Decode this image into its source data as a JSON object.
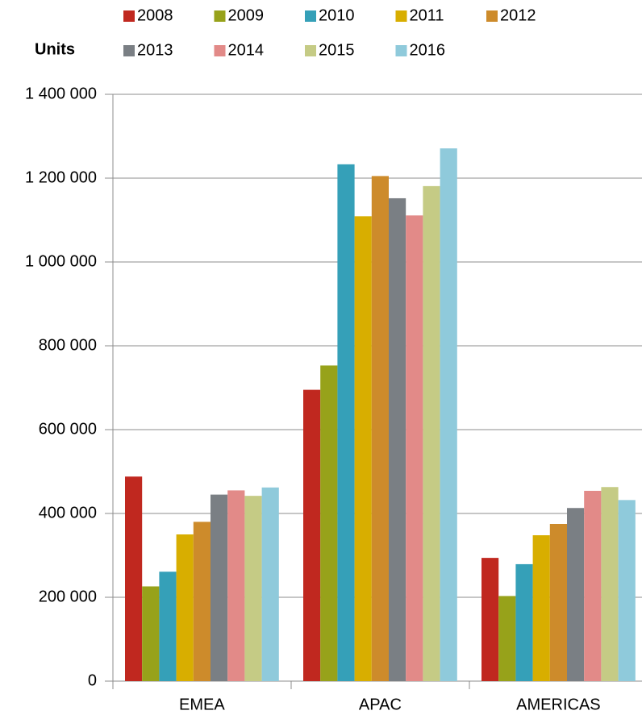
{
  "chart_data": {
    "type": "bar",
    "y_label": "Units",
    "categories": [
      "EMEA",
      "APAC",
      "AMERICAS"
    ],
    "series": [
      {
        "name": "2008",
        "color": "#c0281f",
        "values": [
          488000,
          695000,
          294000
        ]
      },
      {
        "name": "2009",
        "color": "#97a21a",
        "values": [
          226000,
          753000,
          203000
        ]
      },
      {
        "name": "2010",
        "color": "#35a0b8",
        "values": [
          261000,
          1233000,
          279000
        ]
      },
      {
        "name": "2011",
        "color": "#d8ae00",
        "values": [
          350000,
          1109000,
          348000
        ]
      },
      {
        "name": "2012",
        "color": "#cd8b2b",
        "values": [
          380000,
          1205000,
          375000
        ]
      },
      {
        "name": "2013",
        "color": "#7a7f84",
        "values": [
          445000,
          1152000,
          413000
        ]
      },
      {
        "name": "2014",
        "color": "#e28a88",
        "values": [
          455000,
          1111000,
          454000
        ]
      },
      {
        "name": "2015",
        "color": "#c5cb85",
        "values": [
          442000,
          1181000,
          463000
        ]
      },
      {
        "name": "2016",
        "color": "#8fcadb",
        "values": [
          462000,
          1271000,
          432000
        ]
      }
    ],
    "ylim": [
      0,
      1400000
    ],
    "yticks": [
      0,
      {
        "value": 200000,
        "label": "200 000"
      },
      {
        "value": 400000,
        "label": "400 000"
      },
      {
        "value": 600000,
        "label": "600 000"
      },
      {
        "value": 800000,
        "label": "800 000"
      },
      {
        "value": 1000000,
        "label": "1 000 000"
      },
      {
        "value": 1200000,
        "label": "1 200 000"
      },
      {
        "value": 1400000,
        "label": "1 400 000"
      }
    ],
    "grid": true
  }
}
